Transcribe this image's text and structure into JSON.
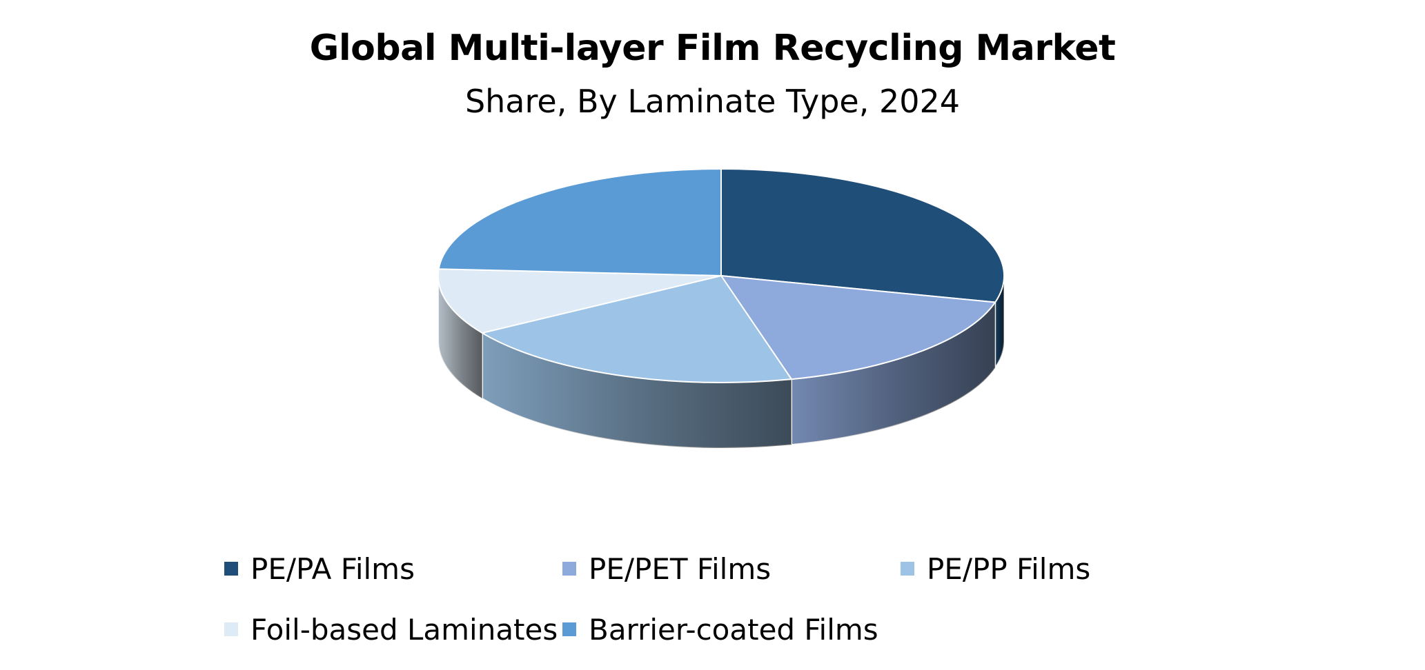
{
  "chart_data": {
    "type": "pie",
    "title": "Global Multi-layer Film Recycling Market",
    "subtitle": "Share, By Laminate Type, 2024",
    "legend_position": "bottom",
    "slices": [
      {
        "label": "PE/PA Films",
        "value": 29,
        "color": "#1F4E79"
      },
      {
        "label": "PE/PET Films",
        "value": 17,
        "color": "#8EA9DB"
      },
      {
        "label": "PE/PP Films",
        "value": 20,
        "color": "#9DC3E6"
      },
      {
        "label": "Foil-based Laminates",
        "value": 10,
        "color": "#DEEAF6"
      },
      {
        "label": "Barrier-coated Films",
        "value": 24,
        "color": "#5B9BD5"
      }
    ]
  }
}
